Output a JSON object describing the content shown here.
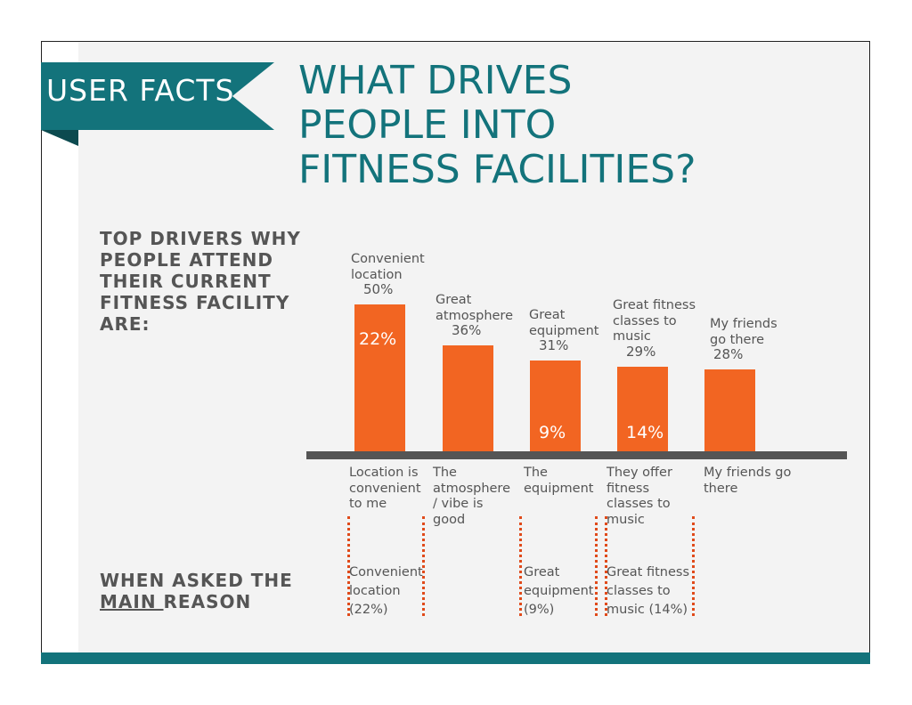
{
  "header": {
    "ribbon_label": "USER FACTS",
    "title_lines": [
      "WHAT DRIVES",
      "PEOPLE INTO",
      "FITNESS FACILITIES?"
    ]
  },
  "section_labels": {
    "top_drivers_lines": [
      "TOP DRIVERS WHY",
      "PEOPLE ATTEND",
      "THEIR CURRENT",
      "FITNESS FACILITY",
      "ARE:"
    ],
    "main_reason_line1": "WHEN ASKED THE",
    "main_reason_underlined": "MAIN ",
    "main_reason_rest": "REASON"
  },
  "chart_data": {
    "type": "bar",
    "title": "Top drivers why people attend their current fitness facility",
    "categories": [
      "Convenient location",
      "Great atmosphere",
      "Great equipment",
      "Great fitness classes to music",
      "My friends go there"
    ],
    "category_label_lines": [
      [
        "Convenient",
        "location"
      ],
      [
        "Great",
        "atmosphere"
      ],
      [
        "Great",
        "equipment"
      ],
      [
        "Great fitness",
        "classes to",
        "music"
      ],
      [
        "My friends",
        "go there"
      ]
    ],
    "series": [
      {
        "name": "Top drivers",
        "values": [
          50,
          36,
          31,
          29,
          28
        ],
        "labels": [
          "50%",
          "36%",
          "31%",
          "29%",
          "28%"
        ]
      },
      {
        "name": "Main reason",
        "values": [
          22,
          null,
          9,
          14,
          null
        ],
        "labels": [
          "22%",
          "",
          "9%",
          "14%",
          ""
        ]
      }
    ],
    "ylim": [
      0,
      58
    ],
    "below_axis_lines": [
      [
        "Location is",
        "convenient",
        "to me"
      ],
      [
        "The",
        "atmosphere",
        "/ vibe is",
        "good"
      ],
      [
        "The",
        "equipment"
      ],
      [
        "They offer",
        "fitness",
        "classes to",
        "music"
      ],
      [
        "My friends go",
        "there"
      ]
    ],
    "main_reason_lines": [
      [
        "Convenient",
        "location",
        "(22%)"
      ],
      [],
      [
        "Great",
        "equipment",
        "(9%)"
      ],
      [
        "Great fitness",
        "classes to",
        "music (14%)"
      ],
      []
    ]
  },
  "colors": {
    "teal": "#13737b",
    "orange": "#f26522",
    "axis": "#555555"
  }
}
